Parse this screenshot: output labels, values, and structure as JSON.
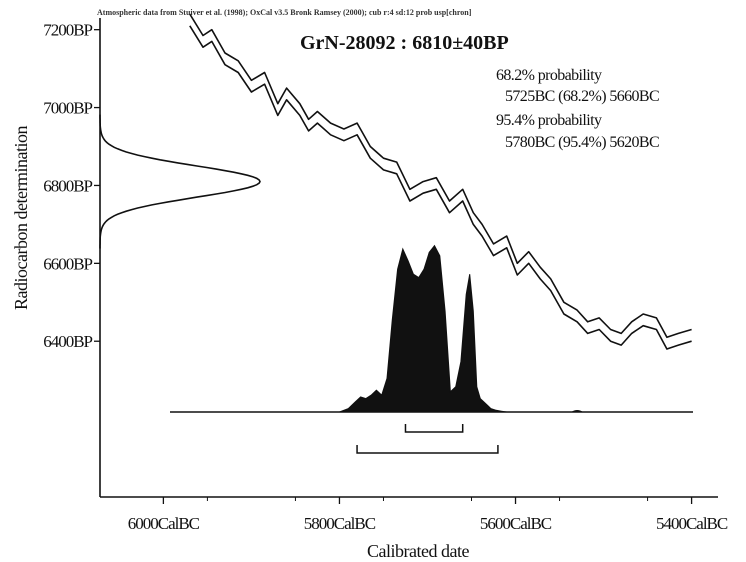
{
  "chart_data": {
    "type": "line",
    "header": "Atmospheric data from Stuiver et al. (1998); OxCal v3.5 Bronk Ramsey (2000); cub r:4 sd:12 prob usp[chron]",
    "title": "GrN-28092 : 6810±40BP",
    "xlabel": "Calibrated date",
    "ylabel": "Radiocarbon determination",
    "x_ticks": [
      {
        "value": 6000,
        "label": "6000CalBC"
      },
      {
        "value": 5800,
        "label": "5800CalBC"
      },
      {
        "value": 5600,
        "label": "5600CalBC"
      },
      {
        "value": 5400,
        "label": "5400CalBC"
      }
    ],
    "y_ticks": [
      {
        "value": 7200,
        "label": "7200BP"
      },
      {
        "value": 7000,
        "label": "7000BP"
      },
      {
        "value": 6800,
        "label": "6800BP"
      },
      {
        "value": 6600,
        "label": "6600BP"
      },
      {
        "value": 6400,
        "label": "6400BP"
      }
    ],
    "xlim": [
      6072,
      5370
    ],
    "ylim": [
      6000,
      7230
    ],
    "annotations": [
      "68.2% probability",
      "5725BC (68.2%) 5660BC",
      "95.4% probability",
      "5780BC (95.4%) 5620BC"
    ],
    "measurement": {
      "mean": 6810,
      "sd": 40
    },
    "series": [
      {
        "role": "calibration-curve-upper",
        "x": [
          5970,
          5955,
          5945,
          5930,
          5915,
          5900,
          5885,
          5870,
          5860,
          5845,
          5835,
          5825,
          5810,
          5795,
          5780,
          5765,
          5750,
          5735,
          5720,
          5705,
          5690,
          5675,
          5660,
          5648,
          5638,
          5625,
          5610,
          5598,
          5585,
          5572,
          5560,
          5545,
          5530,
          5518,
          5505,
          5492,
          5480,
          5468,
          5455,
          5440,
          5428,
          5415,
          5400
        ],
        "y": [
          7240,
          7185,
          7200,
          7140,
          7120,
          7070,
          7090,
          7010,
          7050,
          7010,
          6970,
          6990,
          6960,
          6945,
          6960,
          6900,
          6870,
          6860,
          6790,
          6810,
          6820,
          6760,
          6790,
          6730,
          6700,
          6650,
          6670,
          6600,
          6630,
          6590,
          6560,
          6500,
          6480,
          6450,
          6460,
          6430,
          6420,
          6450,
          6470,
          6460,
          6410,
          6420,
          6430
        ]
      },
      {
        "role": "calibration-curve-lower",
        "x": [
          5970,
          5955,
          5945,
          5930,
          5915,
          5900,
          5885,
          5870,
          5860,
          5845,
          5835,
          5825,
          5810,
          5795,
          5780,
          5765,
          5750,
          5735,
          5720,
          5705,
          5690,
          5675,
          5660,
          5648,
          5638,
          5625,
          5610,
          5598,
          5585,
          5572,
          5560,
          5545,
          5530,
          5518,
          5505,
          5492,
          5480,
          5468,
          5455,
          5440,
          5428,
          5415,
          5400
        ],
        "y": [
          7210,
          7155,
          7170,
          7110,
          7090,
          7040,
          7060,
          6980,
          7020,
          6980,
          6940,
          6960,
          6930,
          6915,
          6930,
          6870,
          6840,
          6830,
          6760,
          6780,
          6790,
          6730,
          6760,
          6700,
          6670,
          6620,
          6640,
          6570,
          6600,
          6560,
          6530,
          6470,
          6450,
          6420,
          6430,
          6400,
          6390,
          6420,
          6440,
          6430,
          6380,
          6390,
          6400
        ]
      },
      {
        "role": "calibrated-probability",
        "x": [
          5800,
          5790,
          5782,
          5776,
          5770,
          5764,
          5758,
          5752,
          5746,
          5740,
          5734,
          5728,
          5722,
          5716,
          5710,
          5704,
          5698,
          5692,
          5686,
          5680,
          5674,
          5668,
          5662,
          5656,
          5652,
          5648,
          5644,
          5640,
          5636,
          5632,
          5628,
          5622,
          5616,
          5610
        ],
        "p": [
          0.0,
          0.02,
          0.06,
          0.09,
          0.08,
          0.1,
          0.13,
          0.1,
          0.2,
          0.55,
          0.85,
          0.97,
          0.9,
          0.82,
          0.8,
          0.85,
          0.95,
          0.99,
          0.93,
          0.6,
          0.12,
          0.15,
          0.3,
          0.7,
          0.82,
          0.6,
          0.15,
          0.08,
          0.06,
          0.04,
          0.02,
          0.01,
          0.005,
          0.0
        ]
      }
    ],
    "ranges": [
      {
        "label": "68.2%",
        "from": 5725,
        "to": 5660
      },
      {
        "label": "95.4%",
        "from": 5780,
        "to": 5620
      }
    ]
  }
}
